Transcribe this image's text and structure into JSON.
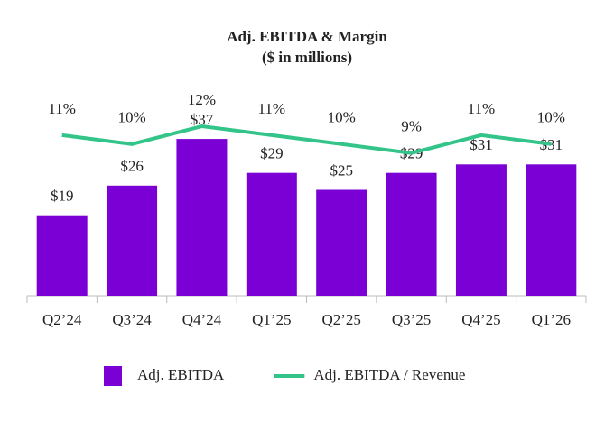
{
  "chart_data": {
    "type": "bar",
    "title": "Adj. EBITDA & Margin",
    "subtitle": "($ in millions)",
    "categories": [
      "Q2’24",
      "Q3’24",
      "Q4’24",
      "Q1’25",
      "Q2’25",
      "Q3’25",
      "Q4’25",
      "Q1’26"
    ],
    "series": [
      {
        "name": "Adj. EBITDA",
        "type": "bar",
        "color": "#7a00d6",
        "values": [
          19,
          26,
          37,
          29,
          25,
          29,
          31,
          31
        ],
        "value_labels": [
          "$19",
          "$26",
          "$37",
          "$29",
          "$25",
          "$29",
          "$31",
          "$31"
        ]
      },
      {
        "name": "Adj. EBITDA / Revenue",
        "type": "line",
        "axis": "y2",
        "color": "#33c48a",
        "values": [
          11,
          10,
          12,
          11,
          10,
          9,
          11,
          10
        ],
        "value_labels": [
          "11%",
          "10%",
          "12%",
          "11%",
          "10%",
          "9%",
          "11%",
          "10%"
        ]
      }
    ],
    "ylim": [
      0,
      40
    ],
    "y2lim": [
      -7,
      12
    ],
    "legend": "bottom"
  }
}
